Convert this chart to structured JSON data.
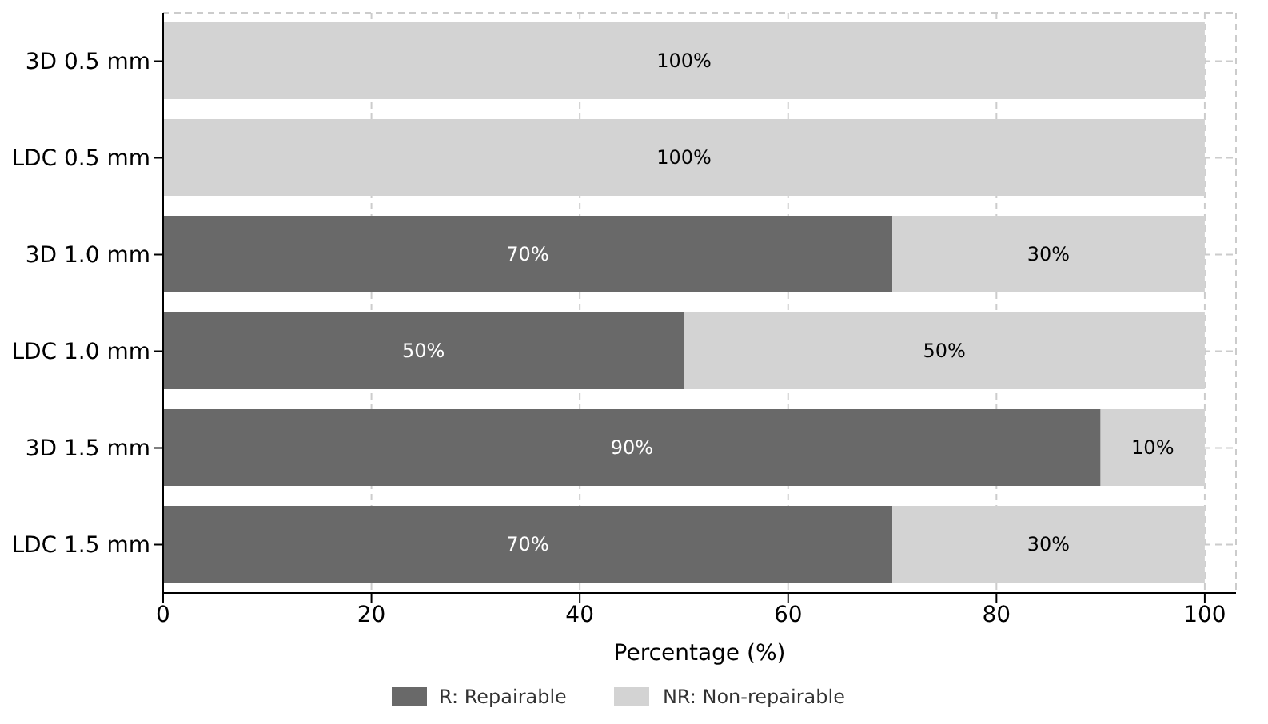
{
  "chart_data": {
    "type": "bar",
    "orientation": "horizontal",
    "stacked": true,
    "xlabel": "Percentage (%)",
    "categories": [
      "3D 0.5 mm",
      "LDC 0.5 mm",
      "3D 1.0 mm",
      "LDC 1.0 mm",
      "3D 1.5 mm",
      "LDC 1.5 mm"
    ],
    "series": [
      {
        "name": "R: Repairable",
        "color": "#696969",
        "values": [
          0,
          0,
          70,
          50,
          90,
          70
        ],
        "value_labels": [
          null,
          null,
          "70%",
          "50%",
          "90%",
          "70%"
        ]
      },
      {
        "name": "NR: Non-repairable",
        "color": "#d3d3d3",
        "values": [
          100,
          100,
          30,
          50,
          10,
          30
        ],
        "value_labels": [
          "100%",
          "100%",
          "30%",
          "50%",
          "10%",
          "30%"
        ]
      }
    ],
    "xlim": [
      0,
      103
    ],
    "xticks": [
      0,
      20,
      40,
      60,
      80,
      100
    ],
    "grid": true,
    "legend": "bottom"
  }
}
